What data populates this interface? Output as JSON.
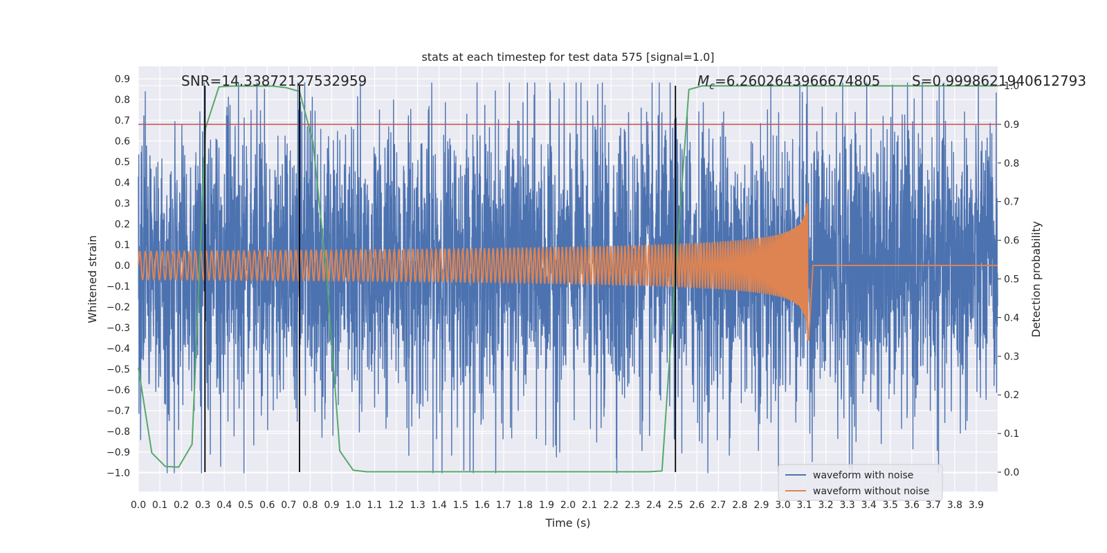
{
  "chart_data": {
    "type": "line",
    "title": "stats at each timestep for test data 575 [signal=1.0]",
    "xlabel": "Time (s)",
    "ylabel": "Whitened strain",
    "y2label": "Detection probability",
    "xlim": [
      0.0,
      4.0
    ],
    "ylim": [
      -1.09,
      0.96
    ],
    "y2lim": [
      -0.05,
      1.05
    ],
    "xticks": [
      "0.0",
      "0.1",
      "0.2",
      "0.3",
      "0.4",
      "0.5",
      "0.6",
      "0.7",
      "0.8",
      "0.9",
      "1.0",
      "1.1",
      "1.2",
      "1.3",
      "1.4",
      "1.5",
      "1.6",
      "1.7",
      "1.8",
      "1.9",
      "2.0",
      "2.1",
      "2.2",
      "2.3",
      "2.4",
      "2.5",
      "2.6",
      "2.7",
      "2.8",
      "2.9",
      "3.0",
      "3.1",
      "3.2",
      "3.3",
      "3.4",
      "3.5",
      "3.6",
      "3.7",
      "3.8",
      "3.9"
    ],
    "yticks": [
      "0.9",
      "0.8",
      "0.7",
      "0.6",
      "0.5",
      "0.4",
      "0.3",
      "0.2",
      "0.1",
      "0.0",
      "−0.1",
      "−0.2",
      "−0.3",
      "−0.4",
      "−0.5",
      "−0.6",
      "−0.7",
      "−0.8",
      "−0.9",
      "−1.0"
    ],
    "y2ticks": [
      "1.0",
      "0.9",
      "0.8",
      "0.7",
      "0.6",
      "0.5",
      "0.4",
      "0.3",
      "0.2",
      "0.1",
      "0.0"
    ],
    "annotations": {
      "snr": "SNR=14.33872127532959",
      "mc_symbol": "M",
      "mc_sub": "c",
      "mc_value": "=6.2602643966674805",
      "s": "S=0.9998621940612793"
    },
    "threshold_line": {
      "axis": "y2",
      "value": 0.9,
      "color": "#c44e52"
    },
    "vertical_lines": [
      {
        "x": 0.31,
        "color": "#000000"
      },
      {
        "x": 0.75,
        "color": "#000000"
      },
      {
        "x": 2.5,
        "color": "#000000"
      }
    ],
    "series": [
      {
        "name": "waveform with noise",
        "color": "#4c72b0",
        "kind": "noise",
        "x_range": [
          0.0,
          4.0
        ],
        "samples": 4096,
        "std": 0.35,
        "y_extent": [
          -1.0,
          0.88
        ]
      },
      {
        "name": "waveform without noise",
        "color": "#dd8452",
        "kind": "chirp",
        "x_range": [
          0.0,
          3.12
        ],
        "merger_time": 3.12,
        "amplitude_start": 0.045,
        "amplitude_peak": 0.36,
        "frequency_start_hz": 38
      },
      {
        "name": "detection probability",
        "axis": "y2",
        "color": "#55a868",
        "in_legend": false,
        "x": [
          0.0,
          0.0625,
          0.125,
          0.1875,
          0.25,
          0.3125,
          0.375,
          0.4375,
          0.5,
          0.5625,
          0.625,
          0.6875,
          0.75,
          0.8125,
          0.875,
          0.9375,
          1.0,
          1.0625,
          1.125,
          2.375,
          2.4375,
          2.5,
          2.5625,
          2.625,
          2.75,
          3.0,
          3.5,
          4.0
        ],
        "values": [
          0.27,
          0.05,
          0.015,
          0.013,
          0.072,
          0.89,
          0.997,
          0.999,
          0.999,
          0.999,
          0.999,
          0.995,
          0.985,
          0.855,
          0.52,
          0.055,
          0.005,
          0.001,
          0.001,
          0.001,
          0.003,
          0.52,
          0.99,
          0.9995,
          0.9995,
          0.9995,
          0.9995,
          0.9995
        ]
      }
    ],
    "legend": {
      "position": "lower-right",
      "entries": [
        {
          "label": "waveform with noise",
          "color": "#4c72b0"
        },
        {
          "label": "waveform without noise",
          "color": "#dd8452"
        }
      ]
    },
    "colors": {
      "plot_background": "#eaeaf2",
      "grid": "#ffffff",
      "figure_background": "#ffffff"
    }
  }
}
